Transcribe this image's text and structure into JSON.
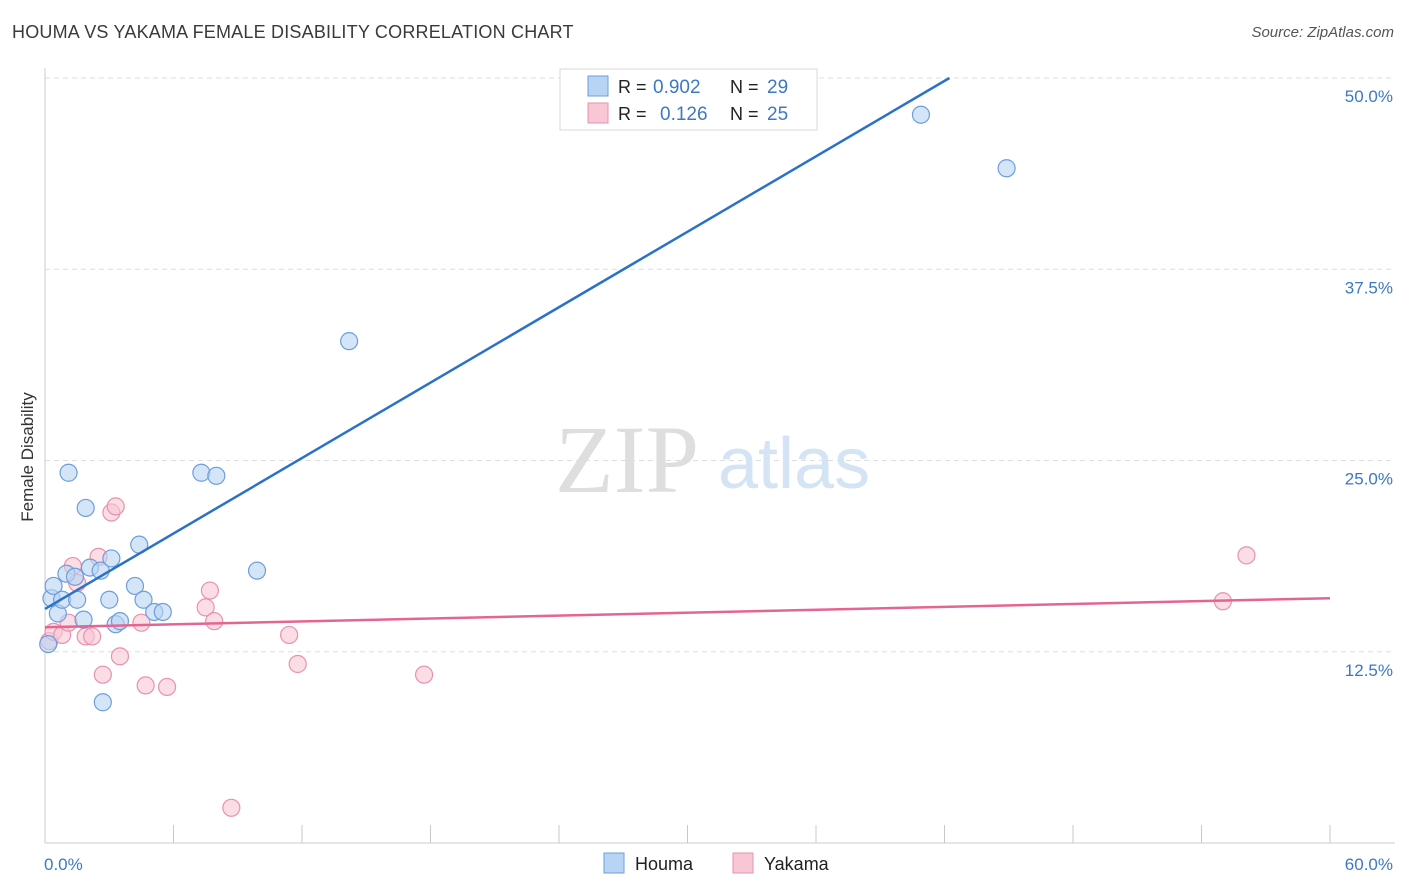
{
  "title": "HOUMA VS YAKAMA FEMALE DISABILITY CORRELATION CHART",
  "source": "Source: ZipAtlas.com",
  "watermark": {
    "zip": "ZIP",
    "atlas": "atlas"
  },
  "colors": {
    "houma_fill": "#b8d4f4",
    "houma_stroke": "#6d9edb",
    "houma_line": "#2a72c8",
    "yakama_fill": "#f8c6d4",
    "yakama_stroke": "#e892ab",
    "yakama_line": "#e46592",
    "tick_label": "#3c78c4",
    "grid": "#dddddd"
  },
  "legend": {
    "rows": [
      {
        "r_label": "R =",
        "r_value": "0.902",
        "n_label": "N =",
        "n_value": "29"
      },
      {
        "r_label": "R =",
        "r_value": "0.126",
        "n_label": "N =",
        "n_value": "25"
      }
    ]
  },
  "chart_data": {
    "type": "scatter",
    "title": "HOUMA VS YAKAMA FEMALE DISABILITY CORRELATION CHART",
    "xlabel": "",
    "ylabel": "Female Disability",
    "xlim": [
      0,
      60
    ],
    "ylim": [
      0,
      50
    ],
    "x_tick_labels": {
      "min": "0.0%",
      "max": "60.0%"
    },
    "y_ticks": [
      12.5,
      25.0,
      37.5,
      50.0
    ],
    "y_tick_labels": [
      "12.5%",
      "25.0%",
      "37.5%",
      "50.0%"
    ],
    "grid": true,
    "legend_position": "bottom-center",
    "series": [
      {
        "name": "Houma",
        "r": 0.902,
        "n": 29,
        "trend": {
          "x0": 0,
          "y0": 15.3,
          "x1": 60,
          "y1": 64.6
        },
        "points": [
          [
            0.3,
            16.0
          ],
          [
            0.4,
            16.8
          ],
          [
            0.6,
            15.0
          ],
          [
            0.8,
            15.9
          ],
          [
            1.0,
            17.6
          ],
          [
            1.1,
            24.2
          ],
          [
            1.4,
            17.4
          ],
          [
            1.5,
            15.9
          ],
          [
            1.8,
            14.6
          ],
          [
            1.9,
            21.9
          ],
          [
            2.1,
            18.0
          ],
          [
            2.6,
            17.8
          ],
          [
            2.7,
            9.2
          ],
          [
            3.0,
            15.9
          ],
          [
            3.1,
            18.6
          ],
          [
            3.3,
            14.3
          ],
          [
            3.5,
            14.5
          ],
          [
            4.2,
            16.8
          ],
          [
            4.4,
            19.5
          ],
          [
            4.6,
            15.9
          ],
          [
            5.1,
            15.1
          ],
          [
            5.5,
            15.1
          ],
          [
            7.3,
            24.2
          ],
          [
            8.0,
            24.0
          ],
          [
            9.9,
            17.8
          ],
          [
            14.2,
            32.8
          ],
          [
            40.9,
            47.6
          ],
          [
            44.9,
            44.1
          ],
          [
            0.15,
            13.0
          ]
        ]
      },
      {
        "name": "Yakama",
        "r": 0.126,
        "n": 25,
        "trend": {
          "x0": 0,
          "y0": 14.1,
          "x1": 60,
          "y1": 16.0
        },
        "points": [
          [
            0.2,
            13.2
          ],
          [
            0.4,
            13.8
          ],
          [
            0.8,
            13.6
          ],
          [
            1.1,
            14.4
          ],
          [
            1.3,
            18.1
          ],
          [
            1.5,
            17.0
          ],
          [
            1.9,
            13.5
          ],
          [
            2.2,
            13.5
          ],
          [
            2.5,
            18.7
          ],
          [
            2.7,
            11.0
          ],
          [
            3.1,
            21.6
          ],
          [
            3.3,
            22.0
          ],
          [
            3.5,
            12.2
          ],
          [
            4.5,
            14.4
          ],
          [
            4.7,
            10.3
          ],
          [
            5.7,
            10.2
          ],
          [
            7.5,
            15.4
          ],
          [
            7.7,
            16.5
          ],
          [
            7.9,
            14.5
          ],
          [
            8.7,
            2.3
          ],
          [
            11.4,
            13.6
          ],
          [
            11.8,
            11.7
          ],
          [
            17.7,
            11.0
          ],
          [
            55.0,
            15.8
          ],
          [
            56.1,
            18.8
          ]
        ]
      }
    ]
  }
}
